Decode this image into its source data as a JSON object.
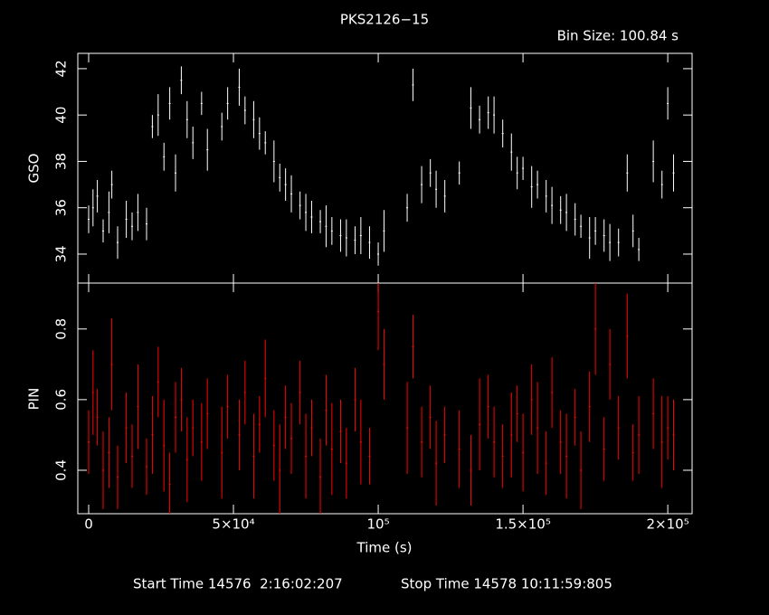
{
  "chart_data": [
    {
      "type": "errorbar",
      "title": "PKS2126−15",
      "subtitle": "Bin Size: 100.84 s",
      "ylabel": "GSO",
      "color": "#ffffff",
      "xlim": [
        -3750,
        208400
      ],
      "ylim": [
        32.75,
        42.66
      ],
      "yticks": [
        34,
        36,
        38,
        40,
        42
      ],
      "x": [
        0,
        1500,
        3000,
        5000,
        7000,
        8000,
        10000,
        13000,
        15000,
        17000,
        20000,
        22000,
        24000,
        26000,
        28000,
        30000,
        32000,
        34000,
        36000,
        39000,
        41000,
        46000,
        48000,
        52000,
        54000,
        57000,
        59000,
        61000,
        64000,
        66000,
        68000,
        70000,
        73000,
        75000,
        77000,
        80000,
        82000,
        84000,
        87000,
        89000,
        92000,
        94000,
        97000,
        100000,
        102000,
        110000,
        112000,
        115000,
        118000,
        120000,
        123000,
        128000,
        132000,
        135000,
        138000,
        140000,
        143000,
        146000,
        148000,
        150000,
        153000,
        155000,
        158000,
        160000,
        163000,
        165000,
        168000,
        170000,
        173000,
        175000,
        178000,
        180000,
        183000,
        186000,
        188000,
        190000,
        195000,
        198000,
        200000,
        202000
      ],
      "values": [
        35.5,
        36.0,
        36.5,
        35.0,
        35.8,
        37.0,
        34.5,
        35.5,
        35.2,
        35.8,
        35.3,
        39.5,
        40.0,
        38.2,
        40.5,
        37.5,
        41.5,
        39.8,
        38.8,
        40.5,
        38.5,
        39.5,
        40.5,
        41.2,
        40.2,
        39.8,
        39.2,
        38.8,
        38.0,
        37.3,
        37.0,
        36.6,
        36.1,
        35.8,
        35.6,
        35.4,
        35.2,
        35.0,
        34.8,
        34.7,
        34.6,
        34.8,
        34.5,
        34.0,
        35.0,
        36.0,
        41.3,
        37.0,
        37.5,
        36.8,
        36.5,
        37.5,
        40.3,
        39.8,
        40.1,
        40.0,
        39.2,
        38.4,
        37.5,
        37.7,
        36.9,
        37.0,
        36.5,
        36.1,
        35.9,
        35.8,
        35.5,
        35.2,
        34.7,
        35.0,
        34.8,
        34.5,
        34.5,
        37.5,
        35.0,
        34.2,
        38.0,
        37.0,
        40.5,
        37.5
      ],
      "errors": [
        0.6,
        0.8,
        0.7,
        0.5,
        0.9,
        0.6,
        0.7,
        0.8,
        0.6,
        0.8,
        0.7,
        0.5,
        0.9,
        0.6,
        0.7,
        0.8,
        0.6,
        0.8,
        0.7,
        0.5,
        0.9,
        0.6,
        0.7,
        0.8,
        0.6,
        0.8,
        0.7,
        0.5,
        0.9,
        0.6,
        0.7,
        0.8,
        0.6,
        0.8,
        0.7,
        0.5,
        0.9,
        0.6,
        0.7,
        0.8,
        0.6,
        0.8,
        0.7,
        0.5,
        0.9,
        0.6,
        0.7,
        0.8,
        0.6,
        0.8,
        0.7,
        0.5,
        0.9,
        0.6,
        0.7,
        0.8,
        0.6,
        0.8,
        0.7,
        0.5,
        0.9,
        0.6,
        0.7,
        0.8,
        0.6,
        0.8,
        0.7,
        0.5,
        0.9,
        0.6,
        0.7,
        0.8,
        0.6,
        0.8,
        0.7,
        0.5,
        0.9,
        0.6,
        0.7,
        0.8
      ]
    },
    {
      "type": "errorbar",
      "ylabel": "PIN",
      "xlabel": "Time (s)",
      "color": "#ff0000",
      "footer": [
        "Start Time 14576  2:16:02:207",
        "Stop Time 14578 10:11:59:805"
      ],
      "xlim": [
        -3750,
        208400
      ],
      "ylim": [
        0.277,
        0.93
      ],
      "yticks": [
        0.4,
        0.6,
        0.8
      ],
      "xticks": [
        0,
        {
          "value": 50000,
          "label": "5×10⁴"
        },
        {
          "value": 100000,
          "label": "10⁵"
        },
        {
          "value": 150000,
          "label": "1.5×10⁵"
        },
        {
          "value": 200000,
          "label": "2×10⁵"
        }
      ],
      "x": [
        0,
        1500,
        3000,
        5000,
        7000,
        8000,
        10000,
        13000,
        15000,
        17000,
        20000,
        22000,
        24000,
        26000,
        28000,
        30000,
        32000,
        34000,
        36000,
        39000,
        41000,
        46000,
        48000,
        52000,
        54000,
        57000,
        59000,
        61000,
        64000,
        66000,
        68000,
        70000,
        73000,
        75000,
        77000,
        80000,
        82000,
        84000,
        87000,
        89000,
        92000,
        94000,
        97000,
        100000,
        102000,
        110000,
        112000,
        115000,
        118000,
        120000,
        123000,
        128000,
        132000,
        135000,
        138000,
        140000,
        143000,
        146000,
        148000,
        150000,
        153000,
        155000,
        158000,
        160000,
        163000,
        165000,
        168000,
        170000,
        173000,
        175000,
        178000,
        180000,
        183000,
        186000,
        188000,
        190000,
        195000,
        198000,
        200000,
        202000
      ],
      "values": [
        0.48,
        0.62,
        0.55,
        0.4,
        0.45,
        0.7,
        0.38,
        0.52,
        0.44,
        0.58,
        0.41,
        0.5,
        0.65,
        0.47,
        0.36,
        0.55,
        0.6,
        0.43,
        0.52,
        0.48,
        0.56,
        0.45,
        0.58,
        0.5,
        0.62,
        0.44,
        0.53,
        0.66,
        0.47,
        0.4,
        0.55,
        0.49,
        0.62,
        0.44,
        0.52,
        0.38,
        0.57,
        0.46,
        0.51,
        0.42,
        0.6,
        0.48,
        0.44,
        0.85,
        0.7,
        0.52,
        0.75,
        0.48,
        0.55,
        0.42,
        0.5,
        0.46,
        0.4,
        0.53,
        0.58,
        0.48,
        0.44,
        0.5,
        0.56,
        0.45,
        0.6,
        0.52,
        0.42,
        0.62,
        0.48,
        0.44,
        0.55,
        0.4,
        0.58,
        0.8,
        0.46,
        0.7,
        0.52,
        0.78,
        0.45,
        0.5,
        0.56,
        0.48,
        0.52,
        0.5
      ],
      "errors": [
        0.09,
        0.12,
        0.08,
        0.11,
        0.1,
        0.13,
        0.09,
        0.1,
        0.09,
        0.12,
        0.08,
        0.11,
        0.1,
        0.13,
        0.09,
        0.1,
        0.09,
        0.12,
        0.08,
        0.11,
        0.1,
        0.13,
        0.09,
        0.1,
        0.09,
        0.12,
        0.08,
        0.11,
        0.1,
        0.13,
        0.09,
        0.1,
        0.09,
        0.12,
        0.08,
        0.11,
        0.1,
        0.13,
        0.09,
        0.1,
        0.09,
        0.12,
        0.08,
        0.11,
        0.1,
        0.13,
        0.09,
        0.1,
        0.09,
        0.12,
        0.08,
        0.11,
        0.1,
        0.13,
        0.09,
        0.1,
        0.09,
        0.12,
        0.08,
        0.11,
        0.1,
        0.13,
        0.09,
        0.1,
        0.09,
        0.12,
        0.08,
        0.11,
        0.1,
        0.13,
        0.09,
        0.1,
        0.09,
        0.12,
        0.08,
        0.11,
        0.1,
        0.13,
        0.09,
        0.1
      ]
    }
  ]
}
